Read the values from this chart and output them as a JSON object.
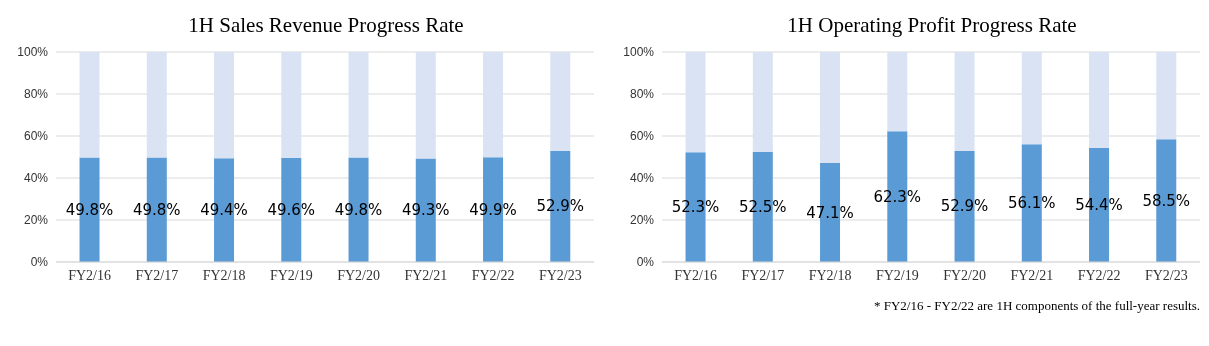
{
  "chart_data": [
    {
      "type": "bar",
      "title": "1H Sales Revenue Progress Rate",
      "stacked": true,
      "grid": "y",
      "categories": [
        "FY2/16",
        "FY2/17",
        "FY2/18",
        "FY2/19",
        "FY2/20",
        "FY2/21",
        "FY2/22",
        "FY2/23"
      ],
      "ylim": [
        0,
        100
      ],
      "yticks": [
        {
          "value": 0,
          "label": "0%"
        },
        {
          "value": 20,
          "label": "20%"
        },
        {
          "value": 40,
          "label": "40%"
        },
        {
          "value": 60,
          "label": "60%"
        },
        {
          "value": 80,
          "label": "80%"
        },
        {
          "value": 100,
          "label": "100%"
        }
      ],
      "series": [
        {
          "color": "#5b9bd5",
          "values": [
            49.8,
            49.8,
            49.4,
            49.6,
            49.8,
            49.3,
            49.9,
            52.9
          ],
          "value_labels": [
            "49.8%",
            "49.8%",
            "49.4%",
            "49.6%",
            "49.8%",
            "49.3%",
            "49.9%",
            "52.9%"
          ]
        },
        {
          "color": "#dae3f3",
          "values": [
            50.2,
            50.2,
            50.6,
            50.4,
            50.2,
            50.7,
            50.1,
            47.1
          ]
        }
      ]
    },
    {
      "type": "bar",
      "title": "1H Operating Profit Progress Rate",
      "stacked": true,
      "grid": "y",
      "categories": [
        "FY2/16",
        "FY2/17",
        "FY2/18",
        "FY2/19",
        "FY2/20",
        "FY2/21",
        "FY2/22",
        "FY2/23"
      ],
      "ylim": [
        0,
        100
      ],
      "yticks": [
        {
          "value": 0,
          "label": "0%"
        },
        {
          "value": 20,
          "label": "20%"
        },
        {
          "value": 40,
          "label": "40%"
        },
        {
          "value": 60,
          "label": "60%"
        },
        {
          "value": 80,
          "label": "80%"
        },
        {
          "value": 100,
          "label": "100%"
        }
      ],
      "annotations": [
        "* FY2/16 - FY2/22 are 1H components of the full-year results."
      ],
      "series": [
        {
          "color": "#5b9bd5",
          "values": [
            52.3,
            52.5,
            47.1,
            62.3,
            52.9,
            56.1,
            54.4,
            58.5
          ],
          "value_labels": [
            "52.3%",
            "52.5%",
            "47.1%",
            "62.3%",
            "52.9%",
            "56.1%",
            "54.4%",
            "58.5%"
          ]
        },
        {
          "color": "#dae3f3",
          "values": [
            47.7,
            47.5,
            52.9,
            37.7,
            47.1,
            43.9,
            45.6,
            41.5
          ]
        }
      ]
    }
  ]
}
